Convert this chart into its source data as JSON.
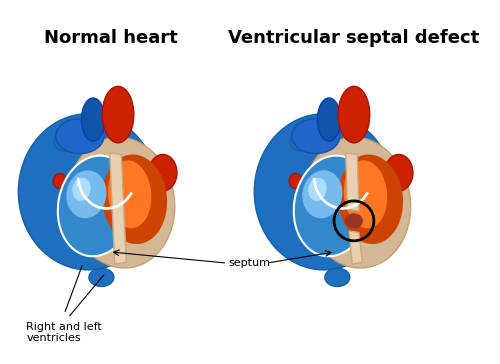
{
  "title_left": "Normal heart",
  "title_right": "Ventricular septal defect",
  "label_ventricles": "Right and left\nventricles",
  "label_septum": "septum",
  "bg_color": "#ffffff",
  "title_fontsize": 13,
  "label_fontsize": 8,
  "fig_width": 5.0,
  "fig_height": 3.64,
  "dpi": 100
}
